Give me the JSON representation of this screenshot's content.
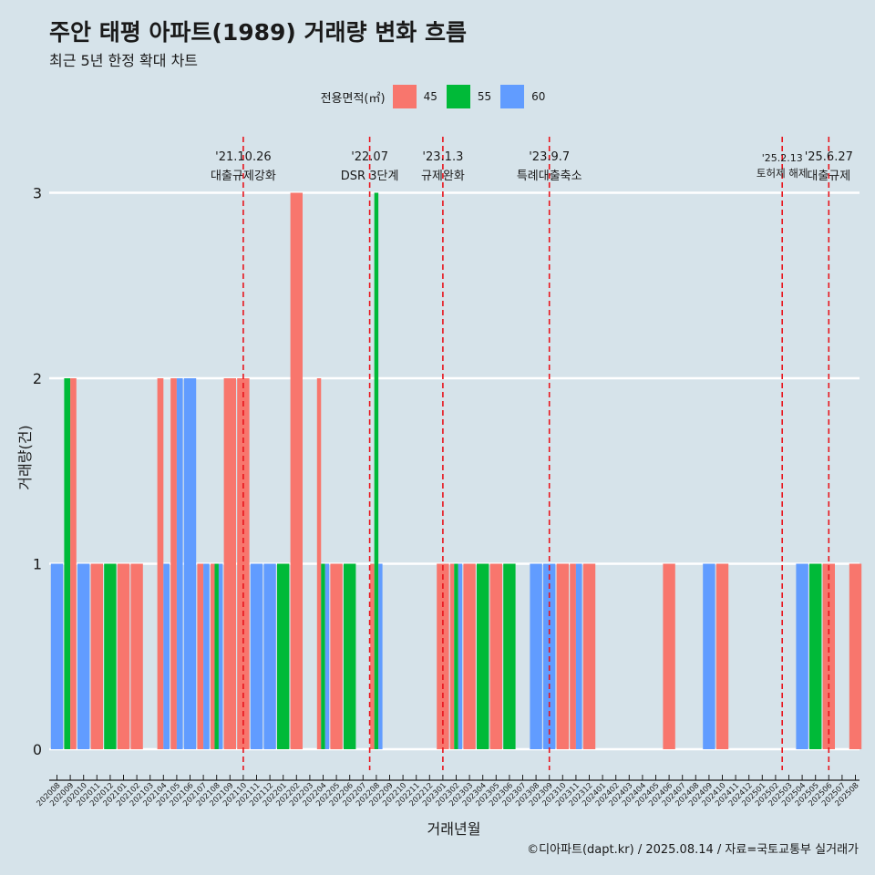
{
  "header": {
    "title": "주안 태평 아파트(1989) 거래량 변화 흐름",
    "subtitle": "최근 5년 한정 확대 차트"
  },
  "footer": {
    "caption": "©디아파트(dapt.kr) / 2025.08.14 / 자료=국토교통부 실거래가"
  },
  "legend": {
    "title": "전용면적(㎡)",
    "items": [
      {
        "label": "45",
        "color": "#F8766D"
      },
      {
        "label": "55",
        "color": "#00BA38"
      },
      {
        "label": "60",
        "color": "#619CFF"
      }
    ]
  },
  "chart_data": {
    "type": "bar",
    "xlabel": "거래년월",
    "ylabel": "거래량(건)",
    "ylim": [
      0,
      3
    ],
    "yticks": [
      "0",
      "1",
      "2",
      "3"
    ],
    "grid": true,
    "legend_position": "top",
    "categories": [
      "202008",
      "202009",
      "202010",
      "202011",
      "202012",
      "202101",
      "202102",
      "202103",
      "202104",
      "202105",
      "202106",
      "202107",
      "202108",
      "202109",
      "202110",
      "202111",
      "202112",
      "202201",
      "202202",
      "202203",
      "202204",
      "202205",
      "202206",
      "202207",
      "202208",
      "202209",
      "202210",
      "202211",
      "202212",
      "202301",
      "202302",
      "202303",
      "202304",
      "202305",
      "202306",
      "202307",
      "202308",
      "202309",
      "202310",
      "202311",
      "202312",
      "202401",
      "202402",
      "202403",
      "202404",
      "202405",
      "202406",
      "202407",
      "202408",
      "202409",
      "202410",
      "202411",
      "202412",
      "202501",
      "202502",
      "202503",
      "202504",
      "202505",
      "202506",
      "202507",
      "202508"
    ],
    "bars": [
      [
        {
          "area": "60",
          "value": 1
        }
      ],
      [
        {
          "area": "55",
          "value": 2
        },
        {
          "area": "45",
          "value": 2
        }
      ],
      [
        {
          "area": "60",
          "value": 1
        }
      ],
      [
        {
          "area": "45",
          "value": 1
        }
      ],
      [
        {
          "area": "55",
          "value": 1
        }
      ],
      [
        {
          "area": "45",
          "value": 1
        }
      ],
      [
        {
          "area": "45",
          "value": 1
        }
      ],
      [],
      [
        {
          "area": "45",
          "value": 2
        },
        {
          "area": "60",
          "value": 1
        }
      ],
      [
        {
          "area": "45",
          "value": 2
        },
        {
          "area": "60",
          "value": 2
        }
      ],
      [
        {
          "area": "60",
          "value": 2
        }
      ],
      [
        {
          "area": "45",
          "value": 1
        },
        {
          "area": "60",
          "value": 1
        }
      ],
      [
        {
          "area": "45",
          "value": 1
        },
        {
          "area": "55",
          "value": 1
        },
        {
          "area": "60",
          "value": 1
        }
      ],
      [
        {
          "area": "45",
          "value": 2
        }
      ],
      [
        {
          "area": "45",
          "value": 2
        }
      ],
      [
        {
          "area": "60",
          "value": 1
        }
      ],
      [
        {
          "area": "60",
          "value": 1
        }
      ],
      [
        {
          "area": "55",
          "value": 1
        }
      ],
      [
        {
          "area": "45",
          "value": 3
        }
      ],
      [],
      [
        {
          "area": "45",
          "value": 2
        },
        {
          "area": "55",
          "value": 1
        },
        {
          "area": "60",
          "value": 1
        }
      ],
      [
        {
          "area": "45",
          "value": 1
        }
      ],
      [
        {
          "area": "55",
          "value": 1
        }
      ],
      [],
      [
        {
          "area": "45",
          "value": 1
        },
        {
          "area": "55",
          "value": 3
        },
        {
          "area": "60",
          "value": 1
        }
      ],
      [],
      [],
      [],
      [],
      [
        {
          "area": "45",
          "value": 1
        }
      ],
      [
        {
          "area": "45",
          "value": 1
        },
        {
          "area": "55",
          "value": 1
        },
        {
          "area": "60",
          "value": 1
        }
      ],
      [
        {
          "area": "45",
          "value": 1
        }
      ],
      [
        {
          "area": "55",
          "value": 1
        }
      ],
      [
        {
          "area": "45",
          "value": 1
        }
      ],
      [
        {
          "area": "55",
          "value": 1
        }
      ],
      [],
      [
        {
          "area": "60",
          "value": 1
        }
      ],
      [
        {
          "area": "60",
          "value": 1
        }
      ],
      [
        {
          "area": "45",
          "value": 1
        }
      ],
      [
        {
          "area": "45",
          "value": 1
        },
        {
          "area": "60",
          "value": 1
        }
      ],
      [
        {
          "area": "45",
          "value": 1
        }
      ],
      [],
      [],
      [],
      [],
      [],
      [
        {
          "area": "45",
          "value": 1
        }
      ],
      [],
      [],
      [
        {
          "area": "60",
          "value": 1
        }
      ],
      [
        {
          "area": "45",
          "value": 1
        }
      ],
      [],
      [],
      [],
      [],
      [],
      [
        {
          "area": "60",
          "value": 1
        }
      ],
      [
        {
          "area": "55",
          "value": 1
        }
      ],
      [
        {
          "area": "45",
          "value": 1
        }
      ],
      [],
      [
        {
          "area": "45",
          "value": 1
        }
      ]
    ],
    "annotations": [
      {
        "date_label": "'21.10.26",
        "text": "대출규제강화",
        "at": "202110"
      },
      {
        "date_label": "'22.07",
        "text": "DSR 3단계",
        "at": "202207.5"
      },
      {
        "date_label": "'23.1.3",
        "text": "규제완화",
        "at": "202301"
      },
      {
        "date_label": "'23.9.7",
        "text": "특례대출축소",
        "at": "202309"
      },
      {
        "date_label": "'25.2.13",
        "text": "토허제 해제",
        "at": "202502.5"
      },
      {
        "date_label": "'25.6.27",
        "text": "대출규제",
        "at": "202506"
      }
    ]
  }
}
